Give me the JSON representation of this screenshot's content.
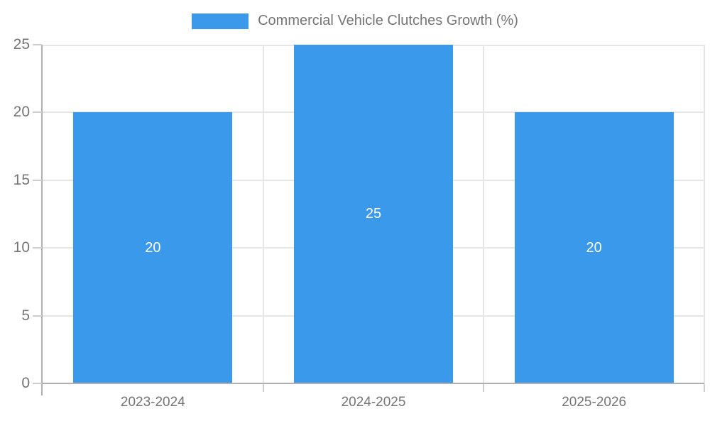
{
  "chart_data": {
    "type": "bar",
    "title": "Commercial Vehicle Clutches Growth (%)",
    "categories": [
      "2023-2024",
      "2024-2025",
      "2025-2026"
    ],
    "values": [
      20,
      25,
      20
    ],
    "bar_labels": [
      "20",
      "25",
      "20"
    ],
    "ylim": [
      0,
      25
    ],
    "yticks": [
      0,
      5,
      10,
      15,
      20,
      25
    ],
    "grid": true,
    "legend_position": "top-center",
    "colors": {
      "bar": "#3b99ec",
      "bar_label": "#ffffff",
      "grid_line": "#e6e6e6",
      "axis_line": "#b0b0b0",
      "tick_mark": "#cccccc",
      "text": "#757575",
      "background": "#ffffff"
    }
  },
  "legend": {
    "label": "Commercial Vehicle Clutches Growth (%)"
  }
}
